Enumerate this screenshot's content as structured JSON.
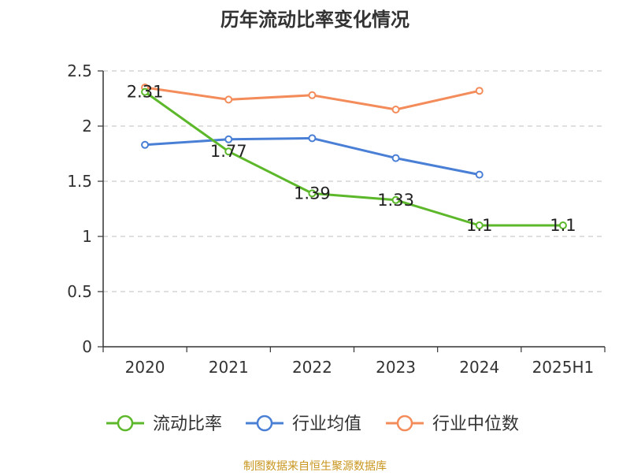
{
  "chart_data": {
    "type": "line",
    "title": "历年流动比率变化情况",
    "categories": [
      "2020",
      "2021",
      "2022",
      "2023",
      "2024",
      "2025H1"
    ],
    "ylim": [
      0,
      2.5
    ],
    "yticks": [
      0,
      0.5,
      1,
      1.5,
      2,
      2.5
    ],
    "ytick_labels": [
      "0",
      "0.5",
      "1",
      "1.5",
      "2",
      "2.5"
    ],
    "grid": true,
    "legend_position": "bottom",
    "series": [
      {
        "name": "流动比率",
        "color": "#5cb82a",
        "values": [
          2.31,
          1.77,
          1.39,
          1.33,
          1.1,
          1.1
        ],
        "labels": [
          "2.31",
          "1.77",
          "1.39",
          "1.33",
          "1.1",
          "1.1"
        ]
      },
      {
        "name": "行业均值",
        "color": "#4a7fd6",
        "values": [
          1.83,
          1.88,
          1.89,
          1.71,
          1.56,
          null
        ]
      },
      {
        "name": "行业中位数",
        "color": "#f38c5a",
        "values": [
          2.35,
          2.24,
          2.28,
          2.15,
          2.32,
          null
        ]
      }
    ],
    "source": "制图数据来自恒生聚源数据库"
  }
}
